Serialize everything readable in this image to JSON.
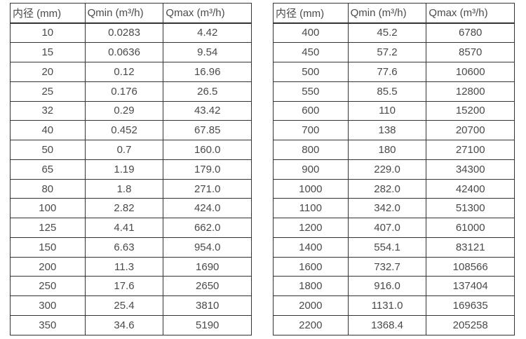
{
  "colors": {
    "background": "#ffffff",
    "text": "#4a4a4a",
    "border": "#333333"
  },
  "tables": [
    {
      "headers": [
        "内径 (mm)",
        "Qmin (m³/h)",
        "Qmax (m³/h)"
      ],
      "rows": [
        [
          "10",
          "0.0283",
          "4.42"
        ],
        [
          "15",
          "0.0636",
          "9.54"
        ],
        [
          "20",
          "0.12",
          "16.96"
        ],
        [
          "25",
          "0.176",
          "26.5"
        ],
        [
          "32",
          "0.29",
          "43.42"
        ],
        [
          "40",
          "0.452",
          "67.85"
        ],
        [
          "50",
          "0.7",
          "160.0"
        ],
        [
          "65",
          "1.19",
          "179.0"
        ],
        [
          "80",
          "1.8",
          "271.0"
        ],
        [
          "100",
          "2.82",
          "424.0"
        ],
        [
          "125",
          "4.41",
          "662.0"
        ],
        [
          "150",
          "6.63",
          "954.0"
        ],
        [
          "200",
          "11.3",
          "1690"
        ],
        [
          "250",
          "17.6",
          "2650"
        ],
        [
          "300",
          "25.4",
          "3810"
        ],
        [
          "350",
          "34.6",
          "5190"
        ]
      ]
    },
    {
      "headers": [
        "内径 (mm)",
        "Qmin (m³/h)",
        "Qmax (m³/h)"
      ],
      "rows": [
        [
          "400",
          "45.2",
          "6780"
        ],
        [
          "450",
          "57.2",
          "8570"
        ],
        [
          "500",
          "77.6",
          "10600"
        ],
        [
          "550",
          "85.5",
          "12800"
        ],
        [
          "600",
          "110",
          "15200"
        ],
        [
          "700",
          "138",
          "20700"
        ],
        [
          "800",
          "180",
          "27100"
        ],
        [
          "900",
          "229.0",
          "34300"
        ],
        [
          "1000",
          "282.0",
          "42400"
        ],
        [
          "1100",
          "342.0",
          "51300"
        ],
        [
          "1200",
          "407.0",
          "61000"
        ],
        [
          "1400",
          "554.1",
          "83121"
        ],
        [
          "1600",
          "732.7",
          "108566"
        ],
        [
          "1800",
          "916.0",
          "137404"
        ],
        [
          "2000",
          "1131.0",
          "169635"
        ],
        [
          "2200",
          "1368.4",
          "205258"
        ]
      ]
    }
  ]
}
